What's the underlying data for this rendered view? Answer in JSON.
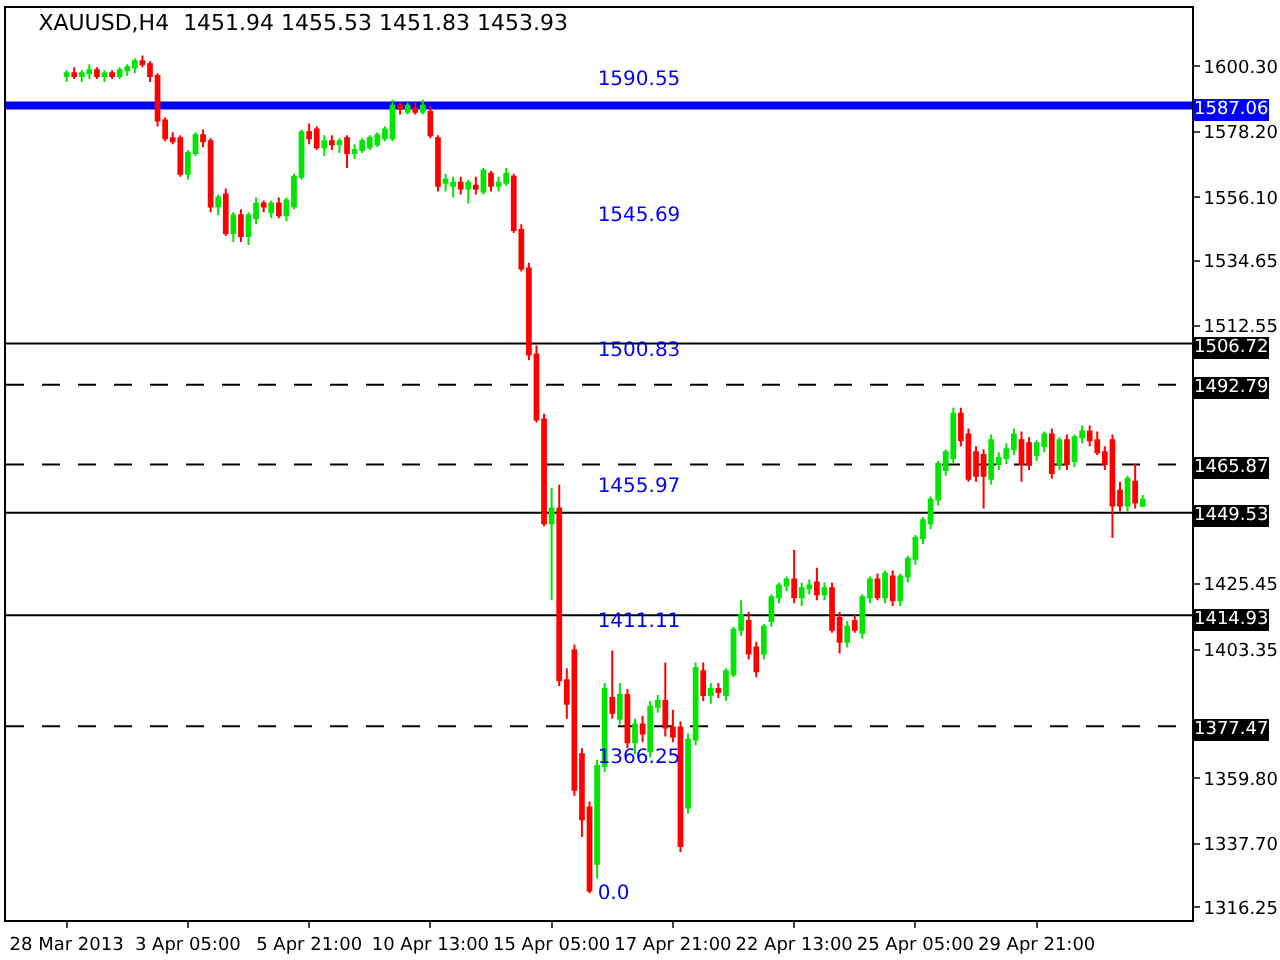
{
  "chart_data": {
    "type": "candlestick",
    "title": "XAUUSD,H4  1451.94 1455.53 1451.83 1453.93",
    "categories": [
      "28 Mar 2013",
      null,
      null,
      null,
      null,
      null,
      null,
      null,
      null,
      null,
      null,
      null,
      null,
      null,
      null,
      null,
      "3 Apr 05:00",
      null,
      null,
      null,
      null,
      null,
      null,
      null,
      null,
      null,
      null,
      null,
      null,
      null,
      null,
      null,
      "5 Apr 21:00",
      null,
      null,
      null,
      null,
      null,
      null,
      null,
      null,
      null,
      null,
      null,
      null,
      null,
      null,
      null,
      "10 Apr 13:00",
      null,
      null,
      null,
      null,
      null,
      null,
      null,
      null,
      null,
      null,
      null,
      null,
      null,
      null,
      null,
      "15 Apr 05:00",
      null,
      null,
      null,
      null,
      null,
      null,
      null,
      null,
      null,
      null,
      null,
      null,
      null,
      null,
      null,
      "17 Apr 21:00",
      null,
      null,
      null,
      null,
      null,
      null,
      null,
      null,
      null,
      null,
      null,
      null,
      null,
      null,
      null,
      "22 Apr 13:00",
      null,
      null,
      null,
      null,
      null,
      null,
      null,
      null,
      null,
      null,
      null,
      null,
      null,
      null,
      null,
      "25 Apr 05:00",
      null,
      null,
      null,
      null,
      null,
      null,
      null,
      null,
      null,
      null,
      null,
      null,
      null,
      null,
      null,
      "29 Apr 21:00",
      null,
      null,
      null,
      null,
      null,
      null,
      null,
      null,
      null,
      null,
      null,
      null,
      null,
      null
    ],
    "ohlc": [
      [
        1597,
        1599,
        1595,
        1598
      ],
      [
        1598,
        1600,
        1596,
        1597
      ],
      [
        1597,
        1599,
        1595,
        1598
      ],
      [
        1598,
        1601,
        1596,
        1599
      ],
      [
        1599,
        1600,
        1596,
        1597
      ],
      [
        1597,
        1599,
        1595,
        1598
      ],
      [
        1598,
        1599,
        1596,
        1597
      ],
      [
        1597,
        1600,
        1596,
        1599
      ],
      [
        1599,
        1601,
        1597,
        1600
      ],
      [
        1600,
        1603,
        1598,
        1602
      ],
      [
        1602,
        1604,
        1600,
        1601
      ],
      [
        1601,
        1602,
        1595,
        1597
      ],
      [
        1597,
        1598,
        1580,
        1582
      ],
      [
        1582,
        1583,
        1575,
        1576
      ],
      [
        1576,
        1578,
        1574,
        1575
      ],
      [
        1576,
        1577,
        1563,
        1564
      ],
      [
        1564,
        1572,
        1562,
        1571
      ],
      [
        1571,
        1578,
        1570,
        1577
      ],
      [
        1577,
        1579,
        1573,
        1575
      ],
      [
        1575,
        1576,
        1551,
        1553
      ],
      [
        1553,
        1557,
        1550,
        1556
      ],
      [
        1557,
        1559,
        1543,
        1544
      ],
      [
        1544,
        1551,
        1541,
        1550
      ],
      [
        1550,
        1552,
        1541,
        1543
      ],
      [
        1543,
        1551,
        1540,
        1550
      ],
      [
        1549,
        1556,
        1547,
        1554
      ],
      [
        1554,
        1555,
        1551,
        1553
      ],
      [
        1551,
        1555,
        1549,
        1554
      ],
      [
        1554,
        1556,
        1549,
        1550
      ],
      [
        1550,
        1556,
        1548,
        1555
      ],
      [
        1553,
        1564,
        1552,
        1563
      ],
      [
        1563,
        1579,
        1562,
        1578
      ],
      [
        1578,
        1581,
        1574,
        1576
      ],
      [
        1579,
        1580,
        1572,
        1573
      ],
      [
        1573,
        1577,
        1570,
        1575
      ],
      [
        1575,
        1577,
        1572,
        1574
      ],
      [
        1574,
        1576,
        1571,
        1575
      ],
      [
        1576,
        1577,
        1566,
        1571
      ],
      [
        1571,
        1574,
        1569,
        1572
      ],
      [
        1572,
        1576,
        1571,
        1575
      ],
      [
        1573,
        1577,
        1572,
        1576
      ],
      [
        1574,
        1578,
        1573,
        1577
      ],
      [
        1576,
        1580,
        1575,
        1579
      ],
      [
        1576,
        1589,
        1575,
        1587
      ],
      [
        1587,
        1588,
        1584,
        1586
      ],
      [
        1585,
        1588,
        1584,
        1587
      ],
      [
        1586,
        1588,
        1584,
        1585
      ],
      [
        1585,
        1589,
        1584,
        1587
      ],
      [
        1585,
        1587,
        1576,
        1577
      ],
      [
        1576,
        1577,
        1558,
        1560
      ],
      [
        1561,
        1564,
        1558,
        1562
      ],
      [
        1560,
        1563,
        1556,
        1561
      ],
      [
        1561,
        1563,
        1557,
        1559
      ],
      [
        1559,
        1562,
        1554,
        1561
      ],
      [
        1560,
        1563,
        1557,
        1559
      ],
      [
        1558,
        1566,
        1557,
        1565
      ],
      [
        1564,
        1565,
        1558,
        1560
      ],
      [
        1560,
        1563,
        1558,
        1561
      ],
      [
        1561,
        1566,
        1560,
        1564
      ],
      [
        1563,
        1564,
        1544,
        1545
      ],
      [
        1545,
        1547,
        1531,
        1532
      ],
      [
        1532,
        1534,
        1501,
        1503
      ],
      [
        1503,
        1506,
        1480,
        1481
      ],
      [
        1481,
        1483,
        1445,
        1446
      ],
      [
        1446,
        1458,
        1420,
        1451
      ],
      [
        1451,
        1459,
        1391,
        1393
      ],
      [
        1393,
        1397,
        1380,
        1385
      ],
      [
        1403,
        1405,
        1354,
        1356
      ],
      [
        1368,
        1370,
        1340,
        1346
      ],
      [
        1350,
        1352,
        1321,
        1322
      ],
      [
        1331,
        1366,
        1326,
        1364
      ],
      [
        1364,
        1392,
        1362,
        1390
      ],
      [
        1387,
        1403,
        1380,
        1382
      ],
      [
        1380,
        1392,
        1378,
        1388
      ],
      [
        1388,
        1390,
        1370,
        1372
      ],
      [
        1372,
        1380,
        1368,
        1378
      ],
      [
        1378,
        1381,
        1372,
        1375
      ],
      [
        1369,
        1386,
        1367,
        1384
      ],
      [
        1384,
        1388,
        1382,
        1386
      ],
      [
        1386,
        1399,
        1374,
        1377
      ],
      [
        1377,
        1383,
        1372,
        1374
      ],
      [
        1377,
        1379,
        1335,
        1337
      ],
      [
        1350,
        1375,
        1348,
        1373
      ],
      [
        1373,
        1399,
        1371,
        1397
      ],
      [
        1396,
        1399,
        1386,
        1388
      ],
      [
        1388,
        1392,
        1385,
        1390
      ],
      [
        1390,
        1392,
        1387,
        1389
      ],
      [
        1388,
        1397,
        1386,
        1396
      ],
      [
        1395,
        1411,
        1394,
        1410
      ],
      [
        1410,
        1420,
        1408,
        1415
      ],
      [
        1413,
        1416,
        1400,
        1402
      ],
      [
        1404,
        1406,
        1394,
        1396
      ],
      [
        1402,
        1412,
        1400,
        1411
      ],
      [
        1413,
        1422,
        1411,
        1421
      ],
      [
        1421,
        1426,
        1419,
        1425
      ],
      [
        1425,
        1428,
        1423,
        1427
      ],
      [
        1427,
        1437,
        1419,
        1421
      ],
      [
        1421,
        1426,
        1418,
        1424
      ],
      [
        1424,
        1427,
        1422,
        1425
      ],
      [
        1426,
        1431,
        1420,
        1422
      ],
      [
        1422,
        1426,
        1420,
        1424
      ],
      [
        1424,
        1426,
        1409,
        1410
      ],
      [
        1414,
        1416,
        1402,
        1406
      ],
      [
        1406,
        1413,
        1404,
        1411
      ],
      [
        1413,
        1415,
        1409,
        1410
      ],
      [
        1409,
        1422,
        1407,
        1421
      ],
      [
        1421,
        1428,
        1419,
        1427
      ],
      [
        1427,
        1429,
        1420,
        1421
      ],
      [
        1421,
        1430,
        1419,
        1429
      ],
      [
        1428,
        1430,
        1418,
        1420
      ],
      [
        1420,
        1429,
        1418,
        1428
      ],
      [
        1428,
        1435,
        1426,
        1434
      ],
      [
        1434,
        1442,
        1432,
        1441
      ],
      [
        1441,
        1448,
        1439,
        1447
      ],
      [
        1446,
        1455,
        1444,
        1454
      ],
      [
        1454,
        1467,
        1452,
        1466
      ],
      [
        1464,
        1471,
        1462,
        1470
      ],
      [
        1468,
        1485,
        1466,
        1483
      ],
      [
        1483,
        1485,
        1472,
        1474
      ],
      [
        1476,
        1478,
        1460,
        1461
      ],
      [
        1470,
        1472,
        1460,
        1462
      ],
      [
        1469,
        1471,
        1451,
        1462
      ],
      [
        1461,
        1476,
        1459,
        1474
      ],
      [
        1466,
        1470,
        1464,
        1468
      ],
      [
        1468,
        1473,
        1466,
        1471
      ],
      [
        1471,
        1478,
        1469,
        1476
      ],
      [
        1474,
        1477,
        1460,
        1466
      ],
      [
        1473,
        1475,
        1464,
        1466
      ],
      [
        1469,
        1474,
        1467,
        1473
      ],
      [
        1472,
        1477,
        1470,
        1476
      ],
      [
        1476,
        1478,
        1461,
        1463
      ],
      [
        1466,
        1475,
        1464,
        1474
      ],
      [
        1474,
        1476,
        1464,
        1466
      ],
      [
        1467,
        1476,
        1465,
        1475
      ],
      [
        1475,
        1479,
        1473,
        1477
      ],
      [
        1477,
        1479,
        1472,
        1474
      ],
      [
        1474,
        1477,
        1469,
        1470
      ],
      [
        1470,
        1472,
        1464,
        1466
      ],
      [
        1474,
        1476,
        1441,
        1452
      ],
      [
        1457,
        1460,
        1450,
        1452
      ],
      [
        1452,
        1462,
        1450,
        1461
      ],
      [
        1460,
        1466,
        1451,
        1453
      ],
      [
        1451.94,
        1455.53,
        1451.83,
        1453.93
      ]
    ],
    "ylim": [
      1312,
      1620
    ],
    "yticks": [
      {
        "value": 1316.25,
        "label": "1316.25"
      },
      {
        "value": 1337.7,
        "label": "1337.70"
      },
      {
        "value": 1359.8,
        "label": "1359.80"
      },
      {
        "value": 1403.35,
        "label": "1403.35"
      },
      {
        "value": 1425.45,
        "label": "1425.45"
      },
      {
        "value": 1512.55,
        "label": "1512.55"
      },
      {
        "value": 1534.65,
        "label": "1534.65"
      },
      {
        "value": 1556.1,
        "label": "1556.10"
      },
      {
        "value": 1578.2,
        "label": "1578.20"
      },
      {
        "value": 1600.3,
        "label": "1600.30"
      }
    ],
    "ref_lines": [
      {
        "axis": "y",
        "value": 1587.06,
        "label": "1587.06",
        "color": "#0000ff",
        "line_style": "solid"
      },
      {
        "axis": "y",
        "value": 1506.72,
        "label": "1506.72",
        "color": "#000000",
        "line_style": "solid"
      },
      {
        "axis": "y",
        "value": 1492.79,
        "label": "1492.79",
        "color": "#000000",
        "line_style": "dashed"
      },
      {
        "axis": "y",
        "value": 1465.87,
        "label": "1465.87",
        "color": "#000000",
        "line_style": "dashed"
      },
      {
        "axis": "y",
        "value": 1449.53,
        "label": "1449.53",
        "color": "#000000",
        "line_style": "solid"
      },
      {
        "axis": "y",
        "value": 1414.93,
        "label": "1414.93",
        "color": "#000000",
        "line_style": "solid"
      },
      {
        "axis": "y",
        "value": 1377.47,
        "label": "1377.47",
        "color": "#000000",
        "line_style": "dashed"
      }
    ],
    "annotations": [
      "1590.55",
      "1545.69",
      "1500.83",
      "1455.97",
      "1411.11",
      "1366.25",
      "0.0"
    ]
  }
}
